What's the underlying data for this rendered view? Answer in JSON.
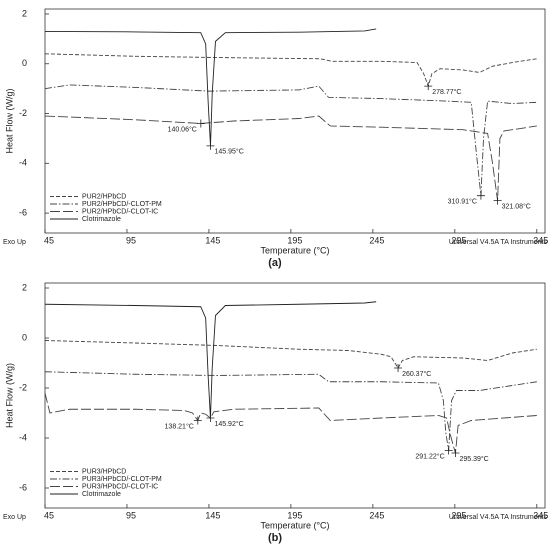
{
  "chart_data": [
    {
      "type": "line",
      "panel_label": "(a)",
      "xlabel": "Temperature (°C)",
      "ylabel": "Heat Flow (W/g)",
      "footer_left": "Exo Up",
      "footer_right": "Universal V4.5A TA Instruments",
      "xlim": [
        45,
        350
      ],
      "xticks": [
        45,
        95,
        145,
        195,
        245,
        295,
        345
      ],
      "ylim": [
        -6.8,
        2.2
      ],
      "yticks": [
        -6,
        -4,
        -2,
        0,
        2
      ],
      "legend": "lower left",
      "series": [
        {
          "name": "PUR2/HPbCD",
          "color": "#444",
          "linestyle": "dashed",
          "x": [
            45,
            100,
            150,
            213,
            220,
            250,
            272,
            276,
            278.77,
            281,
            286,
            300,
            310,
            318,
            330,
            345
          ],
          "values": [
            0.4,
            0.3,
            0.25,
            0.2,
            0.1,
            0.1,
            0.05,
            -0.4,
            -0.9,
            -0.4,
            -0.2,
            -0.25,
            -0.35,
            -0.1,
            0.05,
            0.2
          ]
        },
        {
          "name": "PUR2/HPbCD/-CLOT-PM",
          "color": "#444",
          "linestyle": "dashdot",
          "x": [
            45,
            60,
            100,
            145,
            200,
            212,
            218,
            250,
            290,
            305,
            308,
            310.91,
            312.5,
            315,
            330,
            345
          ],
          "values": [
            -1.0,
            -0.85,
            -0.95,
            -1.1,
            -1.05,
            -0.9,
            -1.35,
            -1.4,
            -1.5,
            -1.55,
            -3.5,
            -5.3,
            -3,
            -1.5,
            -1.6,
            -1.55
          ]
        },
        {
          "name": "PUR2/HPbCD/-CLOT-IC",
          "color": "#444",
          "linestyle": "longdash",
          "x": [
            45,
            100,
            140.06,
            160,
            200,
            212,
            219,
            250,
            300,
            315,
            318,
            321.08,
            322.5,
            325,
            345
          ],
          "values": [
            -2.1,
            -2.25,
            -2.4,
            -2.3,
            -2.2,
            -2.1,
            -2.5,
            -2.55,
            -2.65,
            -2.8,
            -4,
            -5.5,
            -3,
            -2.7,
            -2.5
          ]
        },
        {
          "name": "Clotrimazole",
          "color": "#222",
          "linestyle": "solid",
          "x": [
            45,
            100,
            140,
            143,
            144.5,
            145.95,
            147,
            149,
            155,
            200,
            240,
            247
          ],
          "values": [
            1.3,
            1.28,
            1.25,
            0.8,
            -1.5,
            -3.3,
            -1.2,
            0.9,
            1.25,
            1.27,
            1.32,
            1.4
          ]
        }
      ],
      "annotations": [
        {
          "text": "140.06°C",
          "x": 140.06,
          "y": -2.4
        },
        {
          "text": "145.95°C",
          "x": 145.95,
          "y": -3.3
        },
        {
          "text": "278.77°C",
          "x": 278.77,
          "y": -0.9
        },
        {
          "text": "310.91°C",
          "x": 310.91,
          "y": -5.3
        },
        {
          "text": "321.08°C",
          "x": 321.08,
          "y": -5.5
        }
      ]
    },
    {
      "type": "line",
      "panel_label": "(b)",
      "xlabel": "Temperature (°C)",
      "ylabel": "Heat Flow (W/g)",
      "footer_left": "Exo Up",
      "footer_right": "Universal V4.5A TA Instruments",
      "xlim": [
        45,
        350
      ],
      "xticks": [
        45,
        95,
        145,
        195,
        245,
        295,
        345
      ],
      "ylim": [
        -6.8,
        2.2
      ],
      "yticks": [
        -6,
        -4,
        -2,
        0,
        2
      ],
      "legend": "lower left",
      "series": [
        {
          "name": "PUR3/HPbCD",
          "color": "#444",
          "linestyle": "dashed",
          "x": [
            45,
            100,
            150,
            200,
            230,
            250,
            256,
            258.5,
            260.37,
            263,
            270,
            300,
            315,
            330,
            345
          ],
          "values": [
            -0.1,
            -0.2,
            -0.3,
            -0.45,
            -0.5,
            -0.65,
            -0.75,
            -1.0,
            -1.2,
            -0.9,
            -0.75,
            -0.8,
            -0.9,
            -0.6,
            -0.45
          ]
        },
        {
          "name": "PUR3/HPbCD/-CLOT-PM",
          "color": "#444",
          "linestyle": "dashdot",
          "x": [
            45,
            100,
            150,
            212,
            218,
            250,
            285,
            288,
            289.5,
            291.22,
            293,
            296,
            310,
            330,
            345
          ],
          "values": [
            -1.35,
            -1.45,
            -1.5,
            -1.45,
            -1.75,
            -1.75,
            -1.8,
            -2.5,
            -3.8,
            -4.5,
            -2.5,
            -2.1,
            -2.1,
            -1.9,
            -1.75
          ]
        },
        {
          "name": "PUR3/HPbCD/-CLOT-IC",
          "color": "#444",
          "linestyle": "longdash",
          "x": [
            45,
            48,
            60,
            100,
            130,
            135,
            138.21,
            140,
            143,
            145.92,
            148,
            160,
            212,
            219,
            250,
            285,
            290,
            292,
            294,
            295.39,
            297,
            305,
            345
          ],
          "values": [
            -2.2,
            -3.0,
            -2.85,
            -2.85,
            -2.9,
            -3.0,
            -3.3,
            -3.0,
            -3.05,
            -3.2,
            -2.95,
            -2.85,
            -2.8,
            -3.3,
            -3.2,
            -3.1,
            -3.2,
            -3.8,
            -4.3,
            -4.6,
            -3.5,
            -3.3,
            -3.1
          ]
        },
        {
          "name": "Clotrimazole",
          "color": "#222",
          "linestyle": "solid",
          "x": [
            45,
            100,
            140,
            143,
            144.5,
            145.92,
            147,
            149,
            155,
            200,
            240,
            247
          ],
          "values": [
            1.35,
            1.3,
            1.25,
            0.8,
            -1.5,
            -3.2,
            -1.2,
            0.9,
            1.3,
            1.35,
            1.4,
            1.45
          ]
        }
      ],
      "annotations": [
        {
          "text": "138.21°C",
          "x": 138.21,
          "y": -3.3
        },
        {
          "text": "145.92°C",
          "x": 145.92,
          "y": -3.2
        },
        {
          "text": "260.37°C",
          "x": 260.37,
          "y": -1.2
        },
        {
          "text": "291.22°C",
          "x": 291.22,
          "y": -4.5
        },
        {
          "text": "295.39°C",
          "x": 295.39,
          "y": -4.6
        }
      ]
    }
  ]
}
